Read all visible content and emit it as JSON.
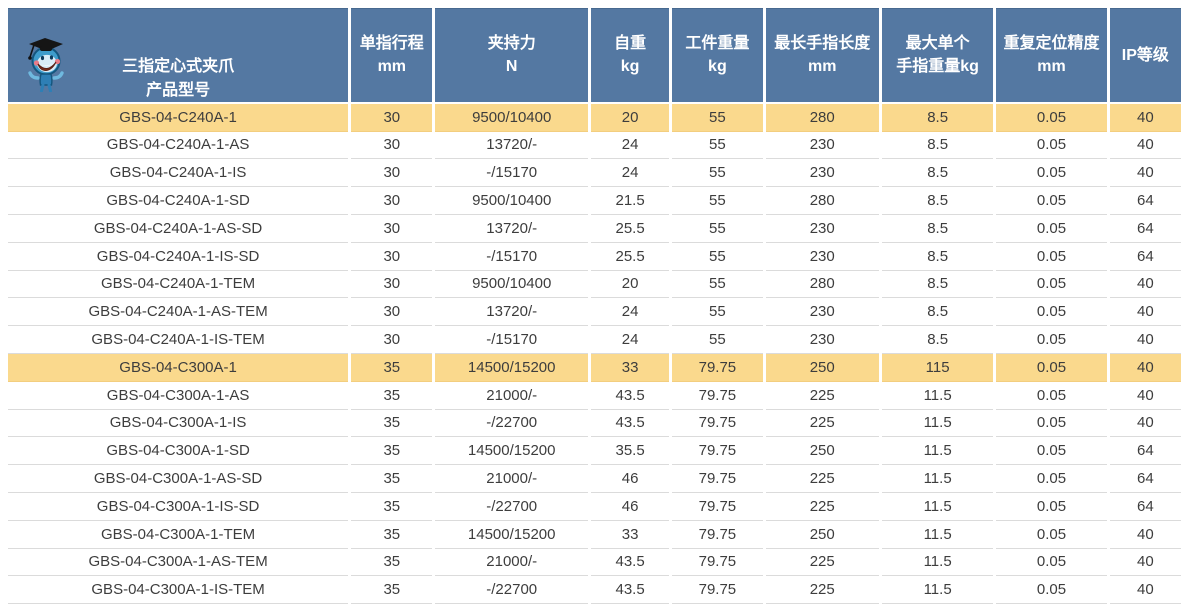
{
  "colors": {
    "header_bg": "#5478A2",
    "header_text": "#FFFFFF",
    "highlight_row_bg": "#FAD98D",
    "body_row_bg": "#FFFFFF",
    "body_text": "#3D3D3D",
    "grid_line": "#DBDBDB",
    "mascot_blue": "#3E9CCB"
  },
  "icons": {
    "mascot": "graduate-cartoon-mascot-icon"
  },
  "chart_data": {
    "type": "table",
    "title": "三指定心式夹爪 产品型号",
    "columns": [
      "三指定心式夹爪\n产品型号",
      "单指行程\nmm",
      "夹持力\nN",
      "自重\nkg",
      "工件重量\nkg",
      "最长手指长度\nmm",
      "最大单个\n手指重量kg",
      "重复定位精度\nmm",
      "IP等级"
    ],
    "highlighted_models": [
      "GBS-04-C240A-1",
      "GBS-04-C300A-1"
    ],
    "rows": [
      {
        "highlight": true,
        "cells": [
          "GBS-04-C240A-1",
          "30",
          "9500/10400",
          "20",
          "55",
          "280",
          "8.5",
          "0.05",
          "40"
        ]
      },
      {
        "highlight": false,
        "cells": [
          "GBS-04-C240A-1-AS",
          "30",
          "13720/-",
          "24",
          "55",
          "230",
          "8.5",
          "0.05",
          "40"
        ]
      },
      {
        "highlight": false,
        "cells": [
          "GBS-04-C240A-1-IS",
          "30",
          "-/15170",
          "24",
          "55",
          "230",
          "8.5",
          "0.05",
          "40"
        ]
      },
      {
        "highlight": false,
        "cells": [
          "GBS-04-C240A-1-SD",
          "30",
          "9500/10400",
          "21.5",
          "55",
          "280",
          "8.5",
          "0.05",
          "64"
        ]
      },
      {
        "highlight": false,
        "cells": [
          "GBS-04-C240A-1-AS-SD",
          "30",
          "13720/-",
          "25.5",
          "55",
          "230",
          "8.5",
          "0.05",
          "64"
        ]
      },
      {
        "highlight": false,
        "cells": [
          "GBS-04-C240A-1-IS-SD",
          "30",
          "-/15170",
          "25.5",
          "55",
          "230",
          "8.5",
          "0.05",
          "64"
        ]
      },
      {
        "highlight": false,
        "cells": [
          "GBS-04-C240A-1-TEM",
          "30",
          "9500/10400",
          "20",
          "55",
          "280",
          "8.5",
          "0.05",
          "40"
        ]
      },
      {
        "highlight": false,
        "cells": [
          "GBS-04-C240A-1-AS-TEM",
          "30",
          "13720/-",
          "24",
          "55",
          "230",
          "8.5",
          "0.05",
          "40"
        ]
      },
      {
        "highlight": false,
        "cells": [
          "GBS-04-C240A-1-IS-TEM",
          "30",
          "-/15170",
          "24",
          "55",
          "230",
          "8.5",
          "0.05",
          "40"
        ]
      },
      {
        "highlight": true,
        "cells": [
          "GBS-04-C300A-1",
          "35",
          "14500/15200",
          "33",
          "79.75",
          "250",
          "115",
          "0.05",
          "40"
        ]
      },
      {
        "highlight": false,
        "cells": [
          "GBS-04-C300A-1-AS",
          "35",
          "21000/-",
          "43.5",
          "79.75",
          "225",
          "11.5",
          "0.05",
          "40"
        ]
      },
      {
        "highlight": false,
        "cells": [
          "GBS-04-C300A-1-IS",
          "35",
          "-/22700",
          "43.5",
          "79.75",
          "225",
          "11.5",
          "0.05",
          "40"
        ]
      },
      {
        "highlight": false,
        "cells": [
          "GBS-04-C300A-1-SD",
          "35",
          "14500/15200",
          "35.5",
          "79.75",
          "250",
          "11.5",
          "0.05",
          "64"
        ]
      },
      {
        "highlight": false,
        "cells": [
          "GBS-04-C300A-1-AS-SD",
          "35",
          "21000/-",
          "46",
          "79.75",
          "225",
          "11.5",
          "0.05",
          "64"
        ]
      },
      {
        "highlight": false,
        "cells": [
          "GBS-04-C300A-1-IS-SD",
          "35",
          "-/22700",
          "46",
          "79.75",
          "225",
          "11.5",
          "0.05",
          "64"
        ]
      },
      {
        "highlight": false,
        "cells": [
          "GBS-04-C300A-1-TEM",
          "35",
          "14500/15200",
          "33",
          "79.75",
          "250",
          "11.5",
          "0.05",
          "40"
        ]
      },
      {
        "highlight": false,
        "cells": [
          "GBS-04-C300A-1-AS-TEM",
          "35",
          "21000/-",
          "43.5",
          "79.75",
          "225",
          "11.5",
          "0.05",
          "40"
        ]
      },
      {
        "highlight": false,
        "cells": [
          "GBS-04-C300A-1-IS-TEM",
          "35",
          "-/22700",
          "43.5",
          "79.75",
          "225",
          "11.5",
          "0.05",
          "40"
        ]
      }
    ]
  }
}
